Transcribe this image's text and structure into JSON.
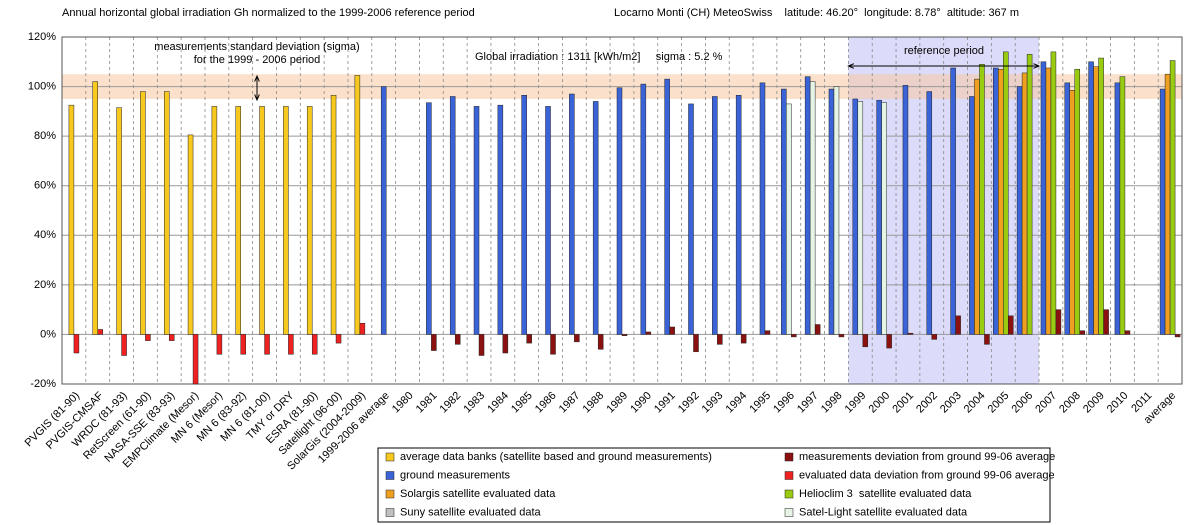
{
  "chart_data": {
    "type": "bar",
    "title": "Annual horizontal global irradiation Gh normalized to the 1999-2006 reference period",
    "subtitle": "Locarno Monti (CH) MeteoSwiss    latitude: 46.20°  longitude: 8.78°  altitude: 367 m",
    "annotations": [
      "measurements standard deviation (sigma)",
      "for the 1999 - 2006 period",
      "Global irradiation : 1311 [kWh/m2]     sigma : 5.2 %",
      "reference period"
    ],
    "sigma_band": [
      95,
      105
    ],
    "reference_period": [
      "1999",
      "2006"
    ],
    "categories": [
      "PVGIS (81-90)",
      "PVGIS-CMSAF",
      "WRDC (81-93)",
      "RetScreen (61-90)",
      "NASA-SSE (83-93)",
      "EMPClimate (Mesor)",
      "MN 6 (Mesor)",
      "MN 6 (83-92)",
      "MN 6 (81-00)",
      "TMY or DRY",
      "ESRA (81-90)",
      "Satellight (96-00)",
      "SolarGis (2004-2009)",
      "1999-2006 average",
      "1980",
      "1981",
      "1982",
      "1983",
      "1984",
      "1985",
      "1986",
      "1987",
      "1988",
      "1989",
      "1990",
      "1991",
      "1992",
      "1993",
      "1994",
      "1995",
      "1996",
      "1997",
      "1998",
      "1999",
      "2000",
      "2001",
      "2002",
      "2003",
      "2004",
      "2005",
      "2006",
      "2007",
      "2008",
      "2009",
      "2010",
      "2011",
      "average"
    ],
    "series": [
      {
        "name": "average data banks (satellite based and ground measurements)",
        "color": "#f7c81e",
        "values": [
          92.5,
          102,
          91.5,
          98,
          98,
          80.5,
          92,
          92,
          92,
          92,
          92,
          96.5,
          104.5,
          null,
          null,
          null,
          null,
          null,
          null,
          null,
          null,
          null,
          null,
          null,
          null,
          null,
          null,
          null,
          null,
          null,
          null,
          null,
          null,
          null,
          null,
          null,
          null,
          null,
          null,
          null,
          null,
          null,
          null,
          null,
          null,
          null,
          null
        ]
      },
      {
        "name": "ground measurements",
        "color": "#3a63d8",
        "values": [
          null,
          null,
          null,
          null,
          null,
          null,
          null,
          null,
          null,
          null,
          null,
          null,
          null,
          100,
          null,
          93.5,
          96,
          92,
          92.5,
          96.5,
          92,
          97,
          94,
          99.5,
          101,
          103,
          93,
          96,
          96.5,
          101.5,
          99,
          104,
          99,
          95,
          94.5,
          100.5,
          98,
          107.5,
          96,
          107.5,
          100,
          110,
          101.5,
          110,
          101.5,
          null,
          99
        ]
      },
      {
        "name": "Solargis satellite evaluated data",
        "color": "#f0a020",
        "values": [
          null,
          null,
          null,
          null,
          null,
          null,
          null,
          null,
          null,
          null,
          null,
          null,
          null,
          null,
          null,
          null,
          null,
          null,
          null,
          null,
          null,
          null,
          null,
          null,
          null,
          null,
          null,
          null,
          null,
          null,
          null,
          null,
          null,
          null,
          null,
          null,
          null,
          null,
          103,
          107,
          105.5,
          107.5,
          98.5,
          108,
          null,
          null,
          105
        ]
      },
      {
        "name": "Helioclim 3  satellite evaluated data",
        "color": "#99cc11",
        "values": [
          null,
          null,
          null,
          null,
          null,
          null,
          null,
          null,
          null,
          null,
          null,
          null,
          null,
          null,
          null,
          null,
          null,
          null,
          null,
          null,
          null,
          null,
          null,
          null,
          null,
          null,
          null,
          null,
          null,
          null,
          null,
          null,
          null,
          null,
          null,
          null,
          null,
          null,
          109,
          114,
          113,
          114,
          107,
          111.5,
          104,
          null,
          110.5
        ]
      },
      {
        "name": "Suny satellite evaluated data",
        "color": "#c0c0c0",
        "values": [
          null,
          null,
          null,
          null,
          null,
          null,
          null,
          null,
          null,
          null,
          null,
          null,
          null,
          null,
          null,
          null,
          null,
          null,
          null,
          null,
          null,
          null,
          null,
          null,
          null,
          null,
          null,
          null,
          null,
          null,
          null,
          null,
          null,
          null,
          null,
          null,
          null,
          null,
          null,
          null,
          null,
          null,
          null,
          null,
          null,
          null,
          null
        ]
      },
      {
        "name": "Satel-Light satellite evaluated data",
        "color": "#e6f4e6",
        "values": [
          null,
          null,
          null,
          null,
          null,
          null,
          null,
          null,
          null,
          null,
          null,
          null,
          null,
          null,
          null,
          null,
          null,
          null,
          null,
          null,
          null,
          null,
          null,
          null,
          null,
          null,
          null,
          null,
          null,
          null,
          93,
          102,
          100,
          94,
          93.5,
          null,
          null,
          null,
          null,
          null,
          null,
          null,
          null,
          null,
          null,
          null,
          null
        ]
      },
      {
        "name": "measurements deviation from ground 99-06 average",
        "color": "#8b1010",
        "values": [
          null,
          null,
          null,
          null,
          null,
          null,
          null,
          null,
          null,
          null,
          null,
          null,
          null,
          null,
          null,
          -6.5,
          -4,
          -8.5,
          -7.5,
          -3.5,
          -8,
          -3,
          -6,
          -0.5,
          1,
          3,
          -7,
          -4,
          -3.5,
          1.5,
          -1,
          4,
          -1,
          -5,
          -5.5,
          0.5,
          -2,
          7.5,
          -4,
          7.5,
          0,
          10,
          1.5,
          10,
          1.5,
          null,
          -1
        ]
      },
      {
        "name": "evaluated data deviation from ground 99-06 average",
        "color": "#ee2020",
        "values": [
          -7.5,
          2,
          -8.5,
          -2.5,
          -2.5,
          -20,
          -8,
          -8,
          -8,
          -8,
          -8,
          -3.5,
          4.5,
          null,
          null,
          null,
          null,
          null,
          null,
          null,
          null,
          null,
          null,
          null,
          null,
          null,
          null,
          null,
          null,
          null,
          null,
          null,
          null,
          null,
          null,
          null,
          null,
          null,
          null,
          null,
          null,
          null,
          null,
          null,
          null,
          null,
          null
        ]
      }
    ],
    "ylim": [
      -20,
      120
    ],
    "yticks": [
      {
        "value": -20,
        "label": "-20%"
      },
      {
        "value": 0,
        "label": "0%"
      },
      {
        "value": 20,
        "label": "20%"
      },
      {
        "value": 40,
        "label": "40%"
      },
      {
        "value": 60,
        "label": "60%"
      },
      {
        "value": 80,
        "label": "80%"
      },
      {
        "value": 100,
        "label": "100%"
      },
      {
        "value": 120,
        "label": "120%"
      }
    ],
    "grid": true
  }
}
